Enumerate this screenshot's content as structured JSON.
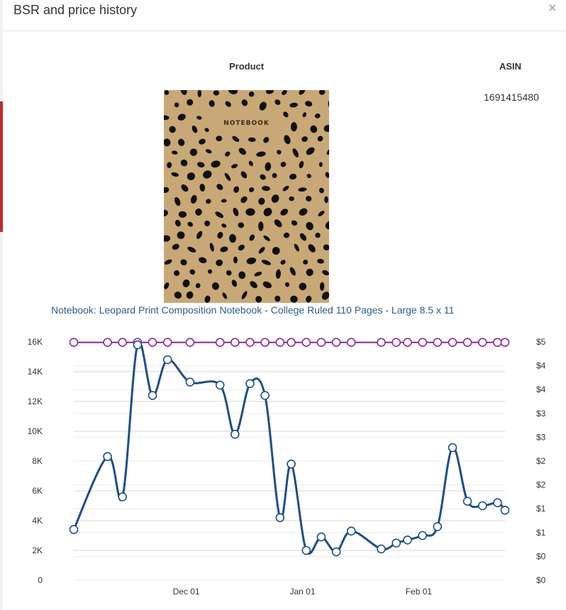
{
  "modal": {
    "title": "BSR and price history",
    "close_label": "×"
  },
  "table": {
    "headers": {
      "product": "Product",
      "asin": "ASIN"
    },
    "asin": "1691415480",
    "cover_text": "NOTEBOOK",
    "product_title": "Notebook: Leopard Print Composition Notebook - College Ruled 110 Pages - Large 8.5 x 11"
  },
  "colors": {
    "bsr": "#1f4e88",
    "price": "#8e2a96",
    "link": "#2b5d8a"
  },
  "chart_data": {
    "type": "line",
    "x_tick_labels": [
      "Dec 01",
      "Jan 01",
      "Feb 01"
    ],
    "x_tick_dates": [
      "2019-12-01",
      "2020-01-01",
      "2020-02-01"
    ],
    "y_left_ticks": [
      "0",
      "2K",
      "4K",
      "6K",
      "8K",
      "10K",
      "12K",
      "14K",
      "16K"
    ],
    "y_left_lim": [
      0,
      16000
    ],
    "y_right_ticks": [
      "$0",
      "$0",
      "$1",
      "$1",
      "$2",
      "$2",
      "$3",
      "$3",
      "$4",
      "$4",
      "$5"
    ],
    "y_right_lim": [
      0,
      5
    ],
    "series": [
      {
        "axis": "left",
        "points": [
          {
            "x": "2019-11-01",
            "y": 3400
          },
          {
            "x": "2019-11-10",
            "y": 8300
          },
          {
            "x": "2019-11-14",
            "y": 5600
          },
          {
            "x": "2019-11-18",
            "y": 15800
          },
          {
            "x": "2019-11-22",
            "y": 12400
          },
          {
            "x": "2019-11-26",
            "y": 14800
          },
          {
            "x": "2019-12-02",
            "y": 13300
          },
          {
            "x": "2019-12-10",
            "y": 13100
          },
          {
            "x": "2019-12-14",
            "y": 9800
          },
          {
            "x": "2019-12-18",
            "y": 13200
          },
          {
            "x": "2019-12-22",
            "y": 12400
          },
          {
            "x": "2019-12-26",
            "y": 4200
          },
          {
            "x": "2019-12-29",
            "y": 7800
          },
          {
            "x": "2020-01-02",
            "y": 2000
          },
          {
            "x": "2020-01-06",
            "y": 2900
          },
          {
            "x": "2020-01-10",
            "y": 1900
          },
          {
            "x": "2020-01-14",
            "y": 3300
          },
          {
            "x": "2020-01-22",
            "y": 2100
          },
          {
            "x": "2020-01-26",
            "y": 2500
          },
          {
            "x": "2020-01-29",
            "y": 2700
          },
          {
            "x": "2020-02-02",
            "y": 3000
          },
          {
            "x": "2020-02-06",
            "y": 3600
          },
          {
            "x": "2020-02-10",
            "y": 8900
          },
          {
            "x": "2020-02-14",
            "y": 5300
          },
          {
            "x": "2020-02-18",
            "y": 5000
          },
          {
            "x": "2020-02-22",
            "y": 5200
          },
          {
            "x": "2020-02-24",
            "y": 4700
          }
        ]
      },
      {
        "axis": "right",
        "points": [
          {
            "x": "2019-11-01",
            "y": 4.99
          },
          {
            "x": "2019-11-10",
            "y": 4.99
          },
          {
            "x": "2019-11-14",
            "y": 4.99
          },
          {
            "x": "2019-11-18",
            "y": 4.99
          },
          {
            "x": "2019-11-22",
            "y": 4.99
          },
          {
            "x": "2019-11-26",
            "y": 4.99
          },
          {
            "x": "2019-12-02",
            "y": 4.99
          },
          {
            "x": "2019-12-10",
            "y": 4.99
          },
          {
            "x": "2019-12-14",
            "y": 4.99
          },
          {
            "x": "2019-12-18",
            "y": 4.99
          },
          {
            "x": "2019-12-22",
            "y": 4.99
          },
          {
            "x": "2019-12-26",
            "y": 4.99
          },
          {
            "x": "2019-12-29",
            "y": 4.99
          },
          {
            "x": "2020-01-02",
            "y": 4.99
          },
          {
            "x": "2020-01-06",
            "y": 4.99
          },
          {
            "x": "2020-01-10",
            "y": 4.99
          },
          {
            "x": "2020-01-14",
            "y": 4.99
          },
          {
            "x": "2020-01-22",
            "y": 4.99
          },
          {
            "x": "2020-01-26",
            "y": 4.99
          },
          {
            "x": "2020-01-29",
            "y": 4.99
          },
          {
            "x": "2020-02-02",
            "y": 4.99
          },
          {
            "x": "2020-02-06",
            "y": 4.99
          },
          {
            "x": "2020-02-10",
            "y": 4.99
          },
          {
            "x": "2020-02-14",
            "y": 4.99
          },
          {
            "x": "2020-02-18",
            "y": 4.99
          },
          {
            "x": "2020-02-22",
            "y": 4.99
          },
          {
            "x": "2020-02-24",
            "y": 4.99
          }
        ]
      }
    ],
    "grid": true,
    "legend": "none"
  }
}
